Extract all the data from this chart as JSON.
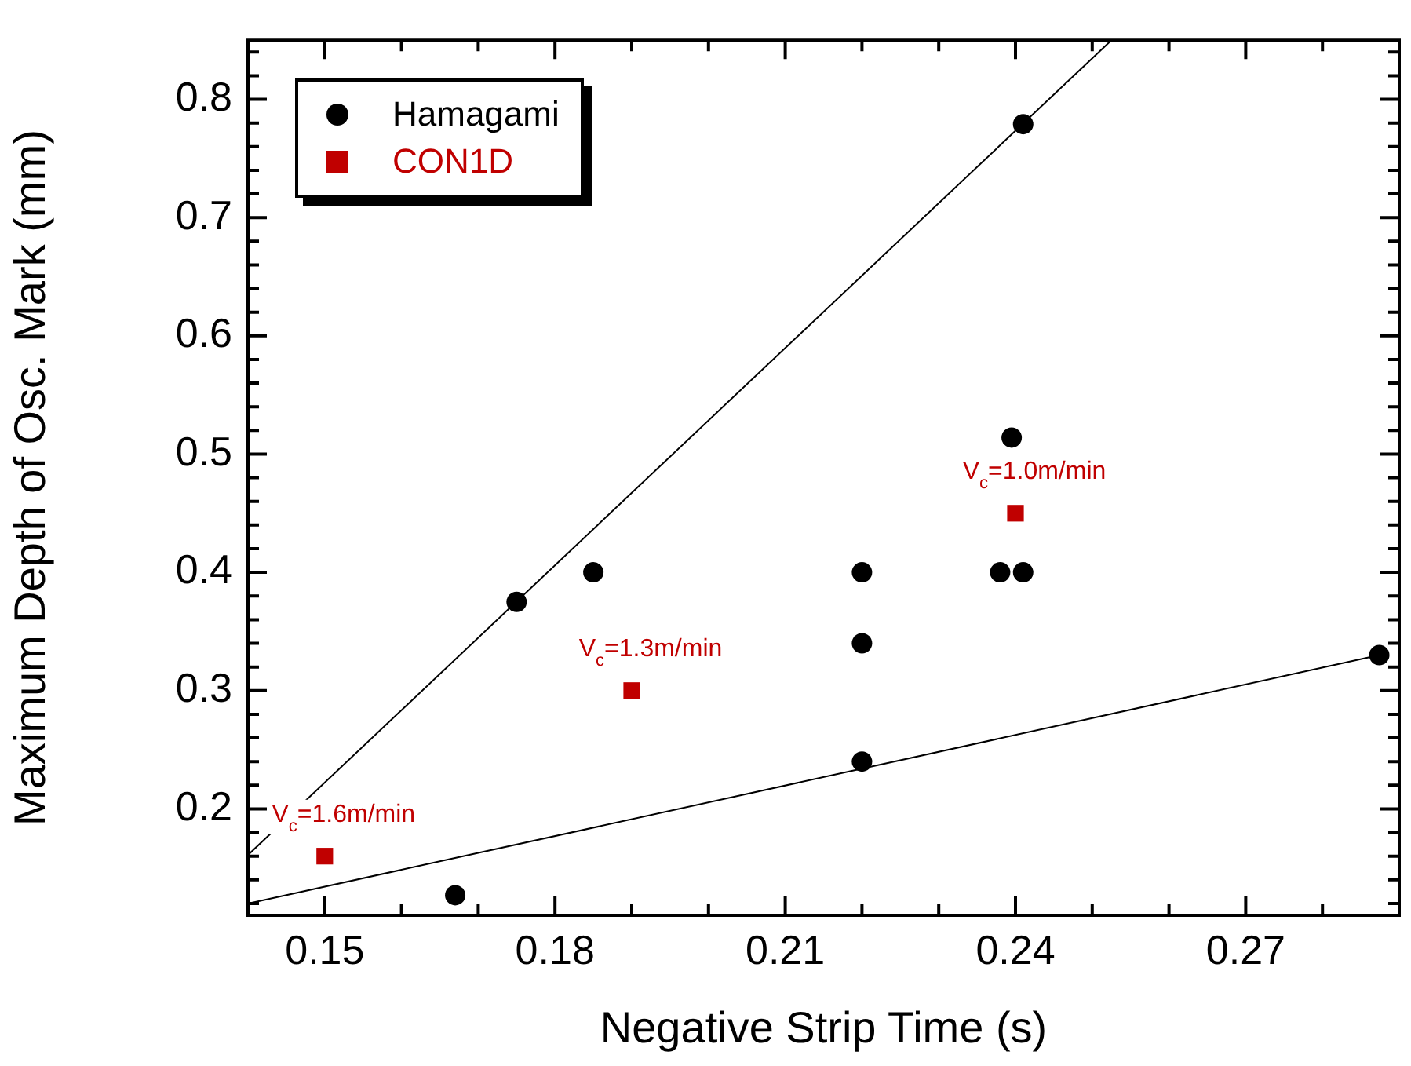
{
  "chart_data": {
    "type": "scatter",
    "xlabel": "Negative Strip Time (s)",
    "ylabel": "Maximum Depth of Osc. Mark (mm)",
    "xlim": [
      0.14,
      0.29
    ],
    "ylim": [
      0.11,
      0.85
    ],
    "xticks": [
      {
        "value": 0.14,
        "label": null
      },
      0.15,
      {
        "value": 0.16,
        "label": null
      },
      {
        "value": 0.17,
        "label": null
      },
      0.18,
      {
        "value": 0.19,
        "label": null
      },
      {
        "value": 0.2,
        "label": null
      },
      0.21,
      {
        "value": 0.22,
        "label": null
      },
      {
        "value": 0.23,
        "label": null
      },
      0.24,
      {
        "value": 0.25,
        "label": null
      },
      {
        "value": 0.26,
        "label": null
      },
      0.27,
      {
        "value": 0.28,
        "label": null
      }
    ],
    "yticks": [
      {
        "value": 0.12,
        "label": null
      },
      {
        "value": 0.14,
        "label": null
      },
      {
        "value": 0.16,
        "label": null
      },
      {
        "value": 0.18,
        "label": null
      },
      0.2,
      {
        "value": 0.22,
        "label": null
      },
      {
        "value": 0.24,
        "label": null
      },
      {
        "value": 0.26,
        "label": null
      },
      {
        "value": 0.28,
        "label": null
      },
      0.3,
      {
        "value": 0.32,
        "label": null
      },
      {
        "value": 0.34,
        "label": null
      },
      {
        "value": 0.36,
        "label": null
      },
      {
        "value": 0.38,
        "label": null
      },
      0.4,
      {
        "value": 0.42,
        "label": null
      },
      {
        "value": 0.44,
        "label": null
      },
      {
        "value": 0.46,
        "label": null
      },
      {
        "value": 0.48,
        "label": null
      },
      0.5,
      {
        "value": 0.52,
        "label": null
      },
      {
        "value": 0.54,
        "label": null
      },
      {
        "value": 0.56,
        "label": null
      },
      {
        "value": 0.58,
        "label": null
      },
      0.6,
      {
        "value": 0.62,
        "label": null
      },
      {
        "value": 0.64,
        "label": null
      },
      {
        "value": 0.66,
        "label": null
      },
      {
        "value": 0.68,
        "label": null
      },
      0.7,
      {
        "value": 0.72,
        "label": null
      },
      {
        "value": 0.74,
        "label": null
      },
      {
        "value": 0.76,
        "label": null
      },
      {
        "value": 0.78,
        "label": null
      },
      0.8,
      {
        "value": 0.82,
        "label": null
      },
      {
        "value": 0.84,
        "label": null
      }
    ],
    "grid": false,
    "legend": "top left",
    "series": [
      {
        "name": "Hamagami",
        "marker": "circle",
        "color": "#000000",
        "x": [
          0.167,
          0.175,
          0.185,
          0.22,
          0.22,
          0.22,
          0.238,
          0.241,
          0.2395,
          0.241,
          0.2874
        ],
        "values": [
          0.127,
          0.375,
          0.4,
          0.4,
          0.34,
          0.24,
          0.4,
          0.4,
          0.514,
          0.779,
          0.33
        ]
      },
      {
        "name": "CON1D",
        "marker": "square",
        "color": "#c00000",
        "x": [
          0.15,
          0.19,
          0.24
        ],
        "values": [
          0.16,
          0.3,
          0.45
        ]
      },
      {
        "type": "line",
        "marker": "none",
        "color": "#000000",
        "x": [
          0.14,
          0.2525
        ],
        "values": [
          0.161,
          0.85
        ]
      },
      {
        "type": "line",
        "marker": "none",
        "color": "#000000",
        "x": [
          0.14,
          0.2874
        ],
        "values": [
          0.12,
          0.33
        ]
      }
    ],
    "annotations": [
      {
        "text": "V$_{c}$=1.6m/min",
        "x": 0.15,
        "y": 0.16
      },
      {
        "text": "V$_{c}$=1.3m/min",
        "x": 0.19,
        "y": 0.3
      },
      {
        "text": "V$_{c}$=1.0m/min",
        "x": 0.24,
        "y": 0.45
      }
    ]
  }
}
